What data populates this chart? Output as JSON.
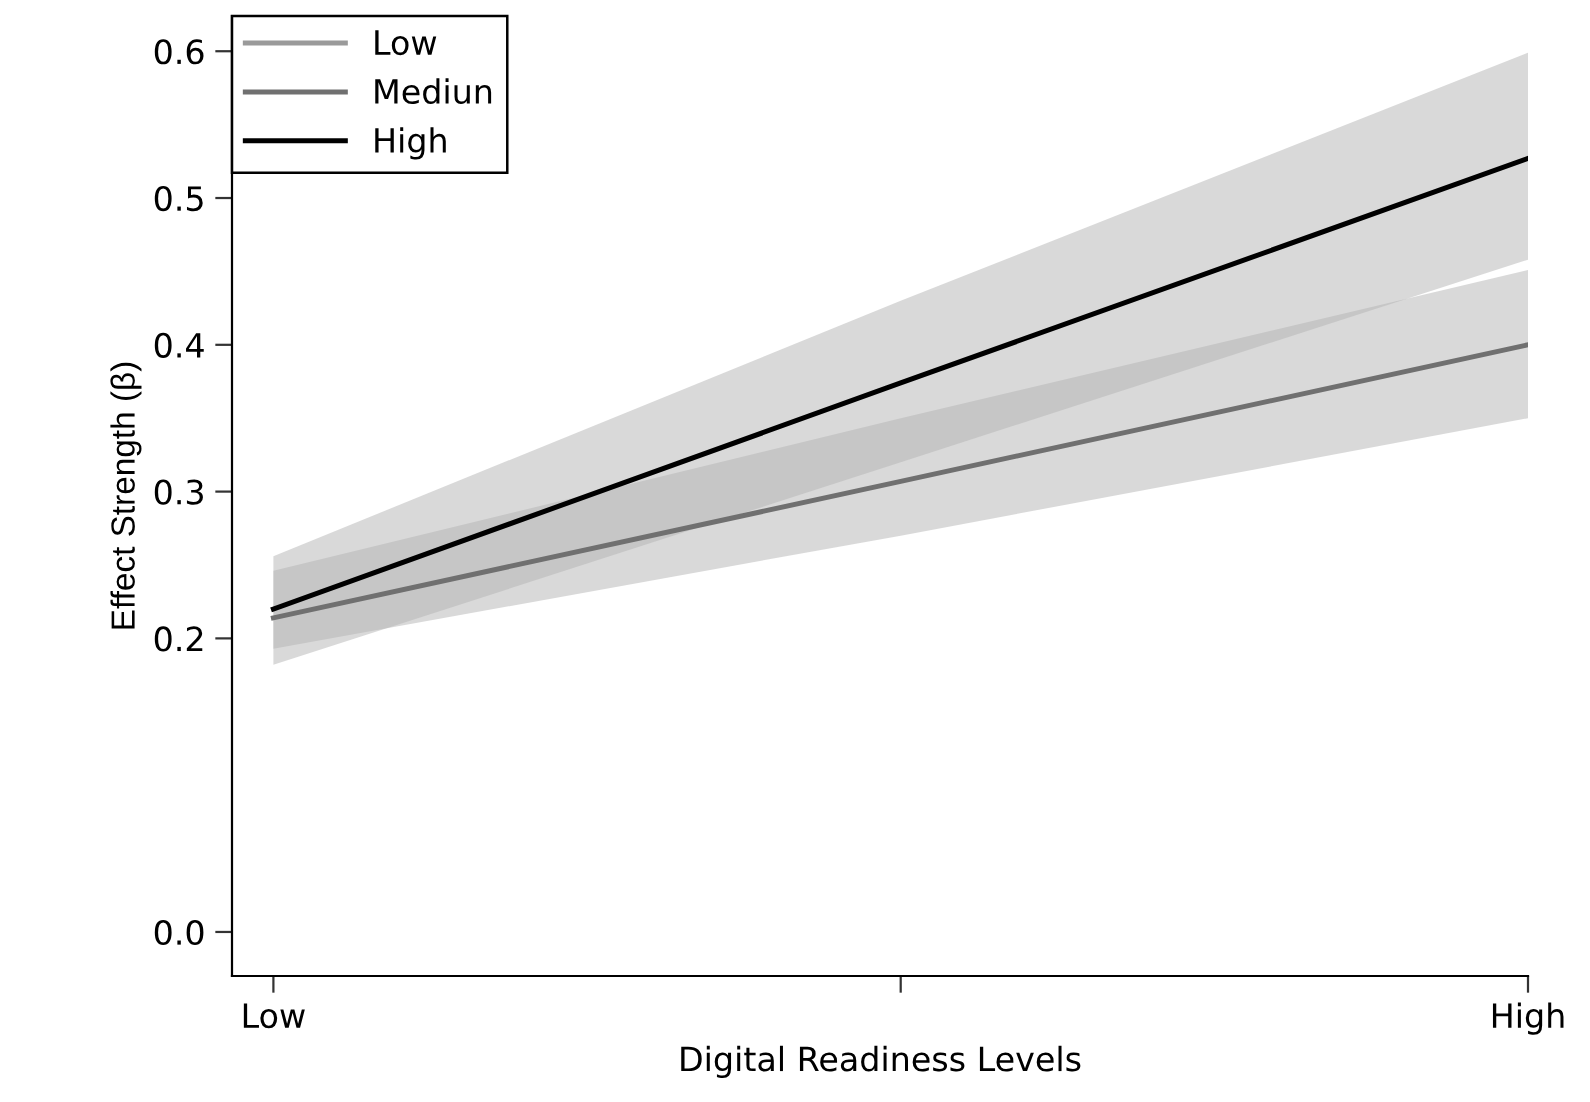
{
  "chart_data": {
    "type": "line",
    "xlabel": "Digital Readiness Levels",
    "ylabel": "Effect Strength (β)",
    "categories": [
      "Low",
      null,
      "High"
    ],
    "ylim": [
      -0.03,
      0.624
    ],
    "yticks": [
      {
        "value": 0,
        "label": "0.0"
      },
      0.2,
      0.3,
      0.4,
      0.5,
      0.6
    ],
    "series": [
      {
        "name": "Low",
        "color": "#9a9a9a",
        "values": [
          null,
          null,
          null
        ]
      },
      {
        "name": "Mediun",
        "color": "#707070",
        "values": [
          0.214,
          0.307,
          0.4
        ],
        "lower": [
          0.193,
          0.27,
          0.35
        ],
        "upper": [
          0.246,
          0.35,
          0.451
        ]
      },
      {
        "name": "High",
        "color": "#000000",
        "values": [
          0.22,
          0.374,
          0.527
        ],
        "lower": [
          0.182,
          0.32,
          0.458
        ],
        "upper": [
          0.256,
          0.43,
          0.599
        ]
      }
    ],
    "legend": "top left",
    "grid": false,
    "marker": "none",
    "line_style": "solid"
  }
}
